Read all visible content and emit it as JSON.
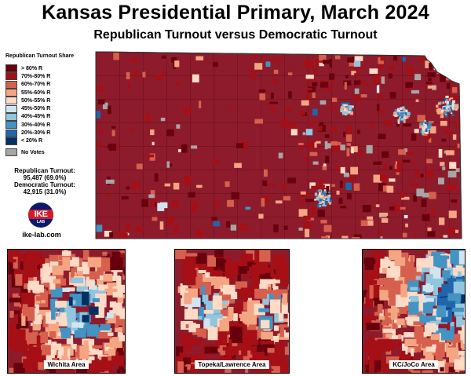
{
  "title": "Kansas Presidential Primary, March 2024",
  "subtitle": "Republican Turnout versus Democratic Turnout",
  "legend": {
    "title": "Republican Turnout Share",
    "items": [
      {
        "label": "> 80% R",
        "color": "#67000d"
      },
      {
        "label": "70%-80% R",
        "color": "#a50f15"
      },
      {
        "label": "60%-70% R",
        "color": "#d6604d"
      },
      {
        "label": "55%-60% R",
        "color": "#f4a582"
      },
      {
        "label": "50%-55% R",
        "color": "#fddbc7"
      },
      {
        "label": "45%-50% R",
        "color": "#d1e5f0"
      },
      {
        "label": "40%-45% R",
        "color": "#92c5de"
      },
      {
        "label": "30%-40% R",
        "color": "#4393c3"
      },
      {
        "label": "20%-30% R",
        "color": "#2166ac"
      },
      {
        "label": "< 20% R",
        "color": "#053061"
      }
    ],
    "no_votes": {
      "label": "No Votes",
      "color": "#a6a6a6"
    }
  },
  "turnout": {
    "rep_label": "Republican Turnout:",
    "rep_value": "95,487 (69.0%)",
    "dem_label": "Democratic Turnout:",
    "dem_value": "42,915 (31.0%)"
  },
  "logo": {
    "text": "IKE",
    "sub": "LAB"
  },
  "site": "ike-lab.com",
  "insets": [
    {
      "label": "Wichita Area"
    },
    {
      "label": "Topeka/Lawrence Area"
    },
    {
      "label": "KC/JoCo Area"
    }
  ]
}
